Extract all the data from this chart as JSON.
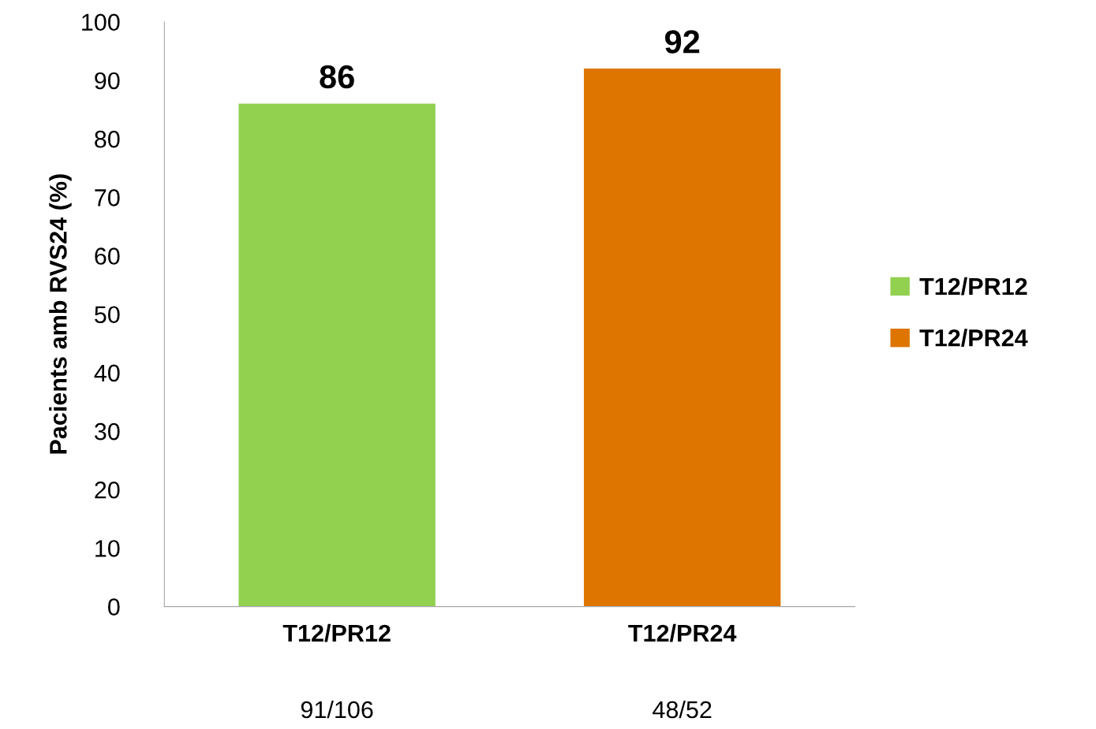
{
  "chart_data": {
    "type": "bar",
    "ylabel": "Pacients amb RVS24 (%)",
    "categories": [
      "T12/PR12",
      "T12/PR24"
    ],
    "series": [
      {
        "name": "T12/PR12",
        "color": "#92d050",
        "values": [
          86,
          null
        ]
      },
      {
        "name": "T12/PR24",
        "color": "#dd7500",
        "values": [
          null,
          92
        ]
      }
    ],
    "ylim": [
      0,
      100
    ],
    "yticks": [
      0,
      10,
      20,
      30,
      40,
      50,
      60,
      70,
      80,
      90,
      100
    ],
    "data_labels": true,
    "legend": "right",
    "grid": false,
    "annotations": [
      "91/106",
      "48/52"
    ]
  }
}
